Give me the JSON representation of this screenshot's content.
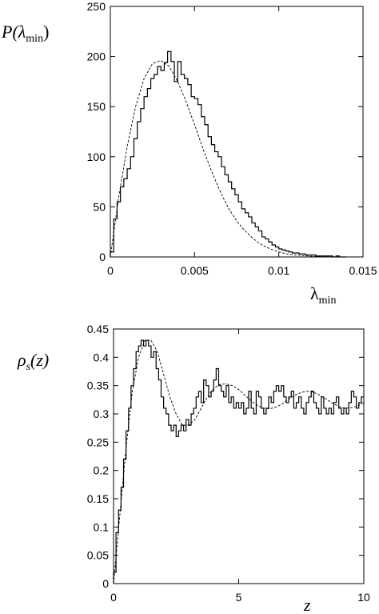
{
  "chart_data": [
    {
      "type": "line",
      "xlabel": "λ",
      "xlabel_sub": "min",
      "ylabel": "P(λ",
      "ylabel_sub": "min",
      "ylabel_close": ")",
      "xlim": [
        0,
        0.015
      ],
      "ylim": [
        0,
        250
      ],
      "xticks": [
        "0",
        "0.005",
        "0.01",
        "0.015"
      ],
      "xtick_values": [
        0,
        0.005,
        0.01,
        0.015
      ],
      "yticks": [
        "0",
        "50",
        "100",
        "150",
        "200",
        "250"
      ],
      "ytick_values": [
        0,
        50,
        100,
        150,
        200,
        250
      ],
      "grid": false,
      "series": [
        {
          "style": "histogram-step",
          "bin_width": 0.0002,
          "x_start": 0,
          "values": [
            5,
            38,
            55,
            70,
            78,
            88,
            100,
            118,
            135,
            148,
            160,
            168,
            178,
            182,
            190,
            186,
            194,
            205,
            195,
            175,
            195,
            182,
            178,
            172,
            160,
            158,
            152,
            140,
            132,
            120,
            112,
            105,
            100,
            90,
            82,
            75,
            68,
            62,
            55,
            48,
            44,
            40,
            34,
            30,
            26,
            20,
            18,
            15,
            12,
            10,
            8,
            7,
            6,
            5,
            4,
            4,
            3,
            3,
            2,
            2,
            2,
            1,
            1,
            1,
            1,
            1,
            0,
            1,
            0,
            0
          ]
        },
        {
          "style": "dashed-fit",
          "x": [
            0,
            0.0005,
            0.001,
            0.0015,
            0.002,
            0.0025,
            0.003,
            0.0035,
            0.004,
            0.0045,
            0.005,
            0.0055,
            0.006,
            0.0065,
            0.007,
            0.0075,
            0.008,
            0.0085,
            0.009,
            0.0095,
            0.01,
            0.0105,
            0.011,
            0.0115,
            0.012,
            0.0125,
            0.013,
            0.014
          ],
          "y": [
            0,
            60,
            110,
            150,
            178,
            193,
            196,
            190,
            175,
            155,
            132,
            108,
            86,
            66,
            49,
            36,
            26,
            18,
            12,
            8,
            5,
            3,
            2,
            1.2,
            0.7,
            0.4,
            0.2,
            0
          ]
        }
      ]
    },
    {
      "type": "line",
      "xlabel": "z",
      "ylabel": "ρ",
      "ylabel_sub": "s",
      "ylabel_close": "(z)",
      "xlim": [
        0,
        10
      ],
      "ylim": [
        0,
        0.45
      ],
      "xticks": [
        "0",
        "5",
        "10"
      ],
      "xtick_values": [
        0,
        5,
        10
      ],
      "yticks": [
        "0",
        "0.05",
        "0.1",
        "0.15",
        "0.2",
        "0.25",
        "0.3",
        "0.35",
        "0.4",
        "0.45"
      ],
      "ytick_values": [
        0,
        0.05,
        0.1,
        0.15,
        0.2,
        0.25,
        0.3,
        0.35,
        0.4,
        0.45
      ],
      "grid": false,
      "series": [
        {
          "style": "histogram-step",
          "bin_width": 0.1,
          "x_start": 0,
          "values": [
            0.02,
            0.09,
            0.13,
            0.17,
            0.22,
            0.27,
            0.31,
            0.35,
            0.38,
            0.41,
            0.42,
            0.43,
            0.42,
            0.43,
            0.42,
            0.4,
            0.41,
            0.38,
            0.36,
            0.33,
            0.31,
            0.3,
            0.28,
            0.27,
            0.28,
            0.26,
            0.27,
            0.28,
            0.27,
            0.29,
            0.28,
            0.3,
            0.31,
            0.33,
            0.34,
            0.32,
            0.36,
            0.35,
            0.33,
            0.34,
            0.36,
            0.38,
            0.35,
            0.34,
            0.33,
            0.35,
            0.32,
            0.33,
            0.31,
            0.32,
            0.31,
            0.32,
            0.3,
            0.31,
            0.34,
            0.31,
            0.3,
            0.34,
            0.33,
            0.31,
            0.3,
            0.31,
            0.33,
            0.32,
            0.34,
            0.35,
            0.34,
            0.35,
            0.33,
            0.32,
            0.33,
            0.34,
            0.31,
            0.32,
            0.33,
            0.31,
            0.3,
            0.32,
            0.33,
            0.34,
            0.32,
            0.31,
            0.3,
            0.33,
            0.31,
            0.3,
            0.31,
            0.3,
            0.32,
            0.33,
            0.31,
            0.3,
            0.31,
            0.3,
            0.32,
            0.34,
            0.33,
            0.31,
            0.32,
            0.33
          ]
        },
        {
          "style": "dashed-fit",
          "x": [
            0,
            0.25,
            0.5,
            0.75,
            1,
            1.25,
            1.5,
            1.75,
            2,
            2.25,
            2.5,
            2.75,
            3,
            3.25,
            3.5,
            3.75,
            4,
            4.25,
            4.5,
            4.75,
            5,
            5.25,
            5.5,
            5.75,
            6,
            6.25,
            6.5,
            6.75,
            7,
            7.25,
            7.5,
            7.75,
            8,
            8.25,
            8.5,
            8.75,
            9,
            9.25,
            9.5,
            9.75,
            10
          ],
          "y": [
            0,
            0.12,
            0.24,
            0.34,
            0.4,
            0.43,
            0.43,
            0.41,
            0.37,
            0.33,
            0.3,
            0.28,
            0.28,
            0.29,
            0.31,
            0.33,
            0.345,
            0.352,
            0.353,
            0.35,
            0.343,
            0.333,
            0.323,
            0.315,
            0.31,
            0.309,
            0.312,
            0.318,
            0.326,
            0.333,
            0.338,
            0.34,
            0.338,
            0.333,
            0.326,
            0.319,
            0.313,
            0.31,
            0.311,
            0.314,
            0.32
          ]
        }
      ]
    }
  ]
}
